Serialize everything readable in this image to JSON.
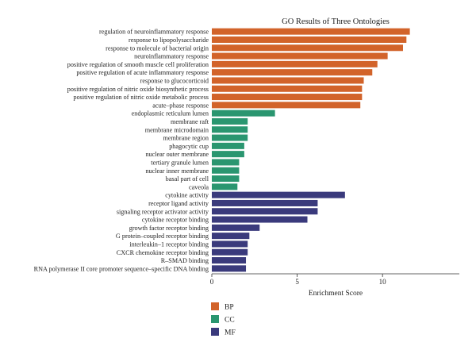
{
  "chart_data": {
    "type": "bar",
    "orientation": "horizontal",
    "title": "GO Results of Three Ontologies",
    "xlabel": "Enrichment Score",
    "ylabel": "",
    "xlim": [
      0,
      14.5
    ],
    "xticks": [
      "0",
      "5",
      "10"
    ],
    "grid": false,
    "legend_position": "bottom-left",
    "categories": [
      "regulation of neuroinflammatory response",
      "response to lipopolysaccharide",
      "response to molecule of bacterial origin",
      "neuroinflammatory response",
      "positive regulation of smooth muscle cell proliferation",
      "positive regulation of acute inflammatory response",
      "response to glucocorticoid",
      "positive regulation of nitric oxide biosynthetic process",
      "positive regulation of nitric oxide metabolic process",
      "acute–phase response",
      "endoplasmic reticulum lumen",
      "membrane raft",
      "membrane microdomain",
      "membrane region",
      "phagocytic cup",
      "nuclear outer membrane",
      "tertiary granule lumen",
      "nuclear inner membrane",
      "basal part of cell",
      "caveola",
      "cytokine activity",
      "receptor ligand activity",
      "signaling receptor activator activity",
      "cytokine receptor binding",
      "growth factor receptor binding",
      "G protein–coupled receptor binding",
      "interleukin–1 receptor binding",
      "CXCR chemokine receptor binding",
      "R–SMAD binding",
      "RNA polymerase II core promoter sequence–specific DNA binding"
    ],
    "values": [
      11.6,
      11.4,
      11.2,
      10.3,
      9.7,
      9.4,
      8.9,
      8.8,
      8.8,
      8.7,
      3.7,
      2.1,
      2.1,
      2.1,
      1.9,
      1.9,
      1.6,
      1.6,
      1.6,
      1.5,
      7.8,
      6.2,
      6.2,
      5.6,
      2.8,
      2.2,
      2.1,
      2.1,
      2.0,
      2.0
    ],
    "groups": [
      "BP",
      "BP",
      "BP",
      "BP",
      "BP",
      "BP",
      "BP",
      "BP",
      "BP",
      "BP",
      "CC",
      "CC",
      "CC",
      "CC",
      "CC",
      "CC",
      "CC",
      "CC",
      "CC",
      "CC",
      "MF",
      "MF",
      "MF",
      "MF",
      "MF",
      "MF",
      "MF",
      "MF",
      "MF",
      "MF"
    ],
    "legend": [
      {
        "name": "BP",
        "color": "#D2632A"
      },
      {
        "name": "CC",
        "color": "#2A9670"
      },
      {
        "name": "MF",
        "color": "#3A3A7C"
      }
    ]
  }
}
